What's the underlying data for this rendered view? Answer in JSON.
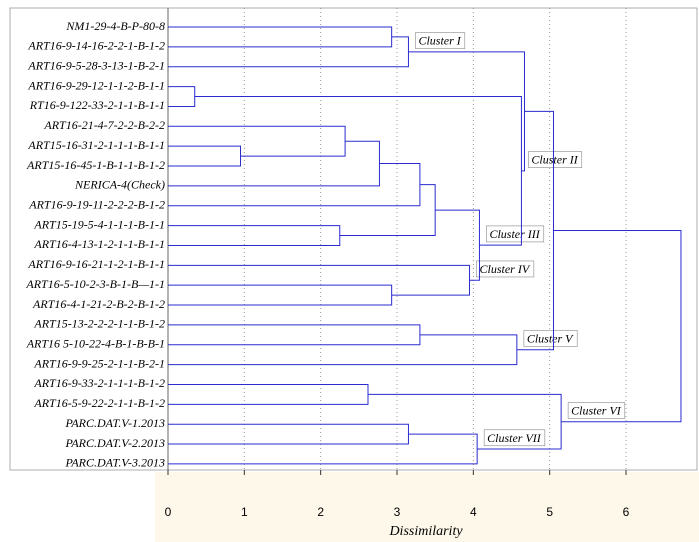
{
  "chart_data": {
    "type": "dendrogram",
    "x_label": "Dissimilarity",
    "xlim": [
      0,
      6.93
    ],
    "xticks": [
      0,
      1,
      2,
      3,
      4,
      5,
      6
    ],
    "grid": true,
    "color": "#2b2bcf",
    "leaves": [
      "NM1-29-4-B-P-80-8",
      "ART16-9-14-16-2-2-1-B-1-2",
      "ART16-9-5-28-3-13-1-B-2-1",
      "ART16-9-29-12-1-1-2-B-1-1",
      "RT16-9-122-33-2-1-1-B-1-1",
      "ART16-21-4-7-2-2-B-2-2",
      "ART15-16-31-2-1-1-1-B-1-1",
      "ART15-16-45-1-B-1-1-B-1-2",
      "NERICA-4(Check)",
      "ART16-9-19-11-2-2-2-B-1-2",
      "ART15-19-5-4-1-1-1-B-1-1",
      "ART16-4-13-1-2-1-1-B-1-1",
      "ART16-9-16-21-1-2-1-B-1-1",
      "ART16-5-10-2-3-B-1-B—1-1",
      "ART16-4-1-21-2-B-2-B-1-2",
      "ART15-13-2-2-2-1-1-B-1-2",
      "ART16 5-10-22-4-B-1-B-B-1",
      "ART16-9-9-25-2-1-1-B-2-1",
      "ART16-9-33-2-1-1-1-B-1-2",
      "ART16-5-9-22-2-1-1-B-1-2",
      "PARC.DAT.V-1.2013",
      "PARC.DAT.V-2.2013",
      "PARC.DAT.V-3.2013"
    ],
    "merges": [
      {
        "children": [
          6,
          7
        ],
        "height": 0.95
      },
      {
        "children": [
          5,
          23
        ],
        "height": 2.32
      },
      {
        "children": [
          24,
          8
        ],
        "height": 2.77
      },
      {
        "children": [
          25,
          9
        ],
        "height": 3.3
      },
      {
        "children": [
          10,
          11
        ],
        "height": 2.25
      },
      {
        "children": [
          26,
          27
        ],
        "height": 3.5
      },
      {
        "children": [
          13,
          14
        ],
        "height": 2.93
      },
      {
        "children": [
          12,
          29
        ],
        "height": 3.95,
        "label": "Cluster IV"
      },
      {
        "children": [
          28,
          30
        ],
        "height": 4.08,
        "label": "Cluster III"
      },
      {
        "children": [
          3,
          4
        ],
        "height": 0.35
      },
      {
        "children": [
          32,
          31
        ],
        "height": 4.63,
        "label": "Cluster II"
      },
      {
        "children": [
          0,
          1
        ],
        "height": 2.93
      },
      {
        "children": [
          34,
          2
        ],
        "height": 3.15,
        "label": "Cluster I"
      },
      {
        "children": [
          35,
          33
        ],
        "height": 4.67
      },
      {
        "children": [
          15,
          16
        ],
        "height": 3.3
      },
      {
        "children": [
          37,
          17
        ],
        "height": 4.57,
        "label": "Cluster V"
      },
      {
        "children": [
          36,
          38
        ],
        "height": 5.05
      },
      {
        "children": [
          18,
          19
        ],
        "height": 2.62
      },
      {
        "children": [
          20,
          21
        ],
        "height": 3.15
      },
      {
        "children": [
          41,
          22
        ],
        "height": 4.05,
        "label": "Cluster VII"
      },
      {
        "children": [
          40,
          42
        ],
        "height": 5.15,
        "label": "Cluster VI"
      },
      {
        "children": [
          39,
          43
        ],
        "height": 6.72
      }
    ]
  }
}
